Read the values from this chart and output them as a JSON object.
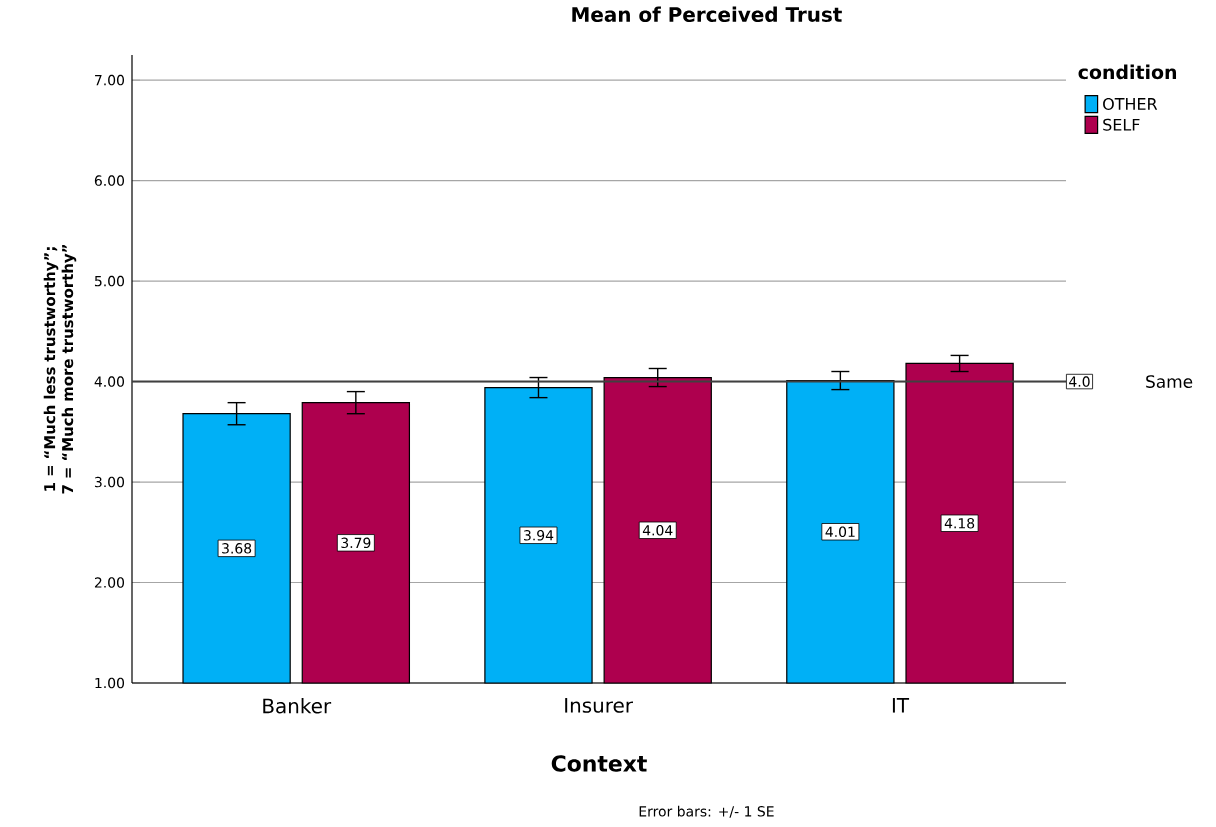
{
  "chart_data": {
    "type": "bar",
    "title": "Mean of Perceived Trust",
    "xlabel": "Context",
    "ylabel": "1 = “Much less trustworthy”; 7 = “Much more trustworthy”",
    "legend_title": "condition",
    "categories": [
      "Banker",
      "Insurer",
      "IT"
    ],
    "series": [
      {
        "name": "OTHER",
        "color": "#00b0f6",
        "values": [
          3.68,
          3.94,
          4.01
        ],
        "errors": [
          0.11,
          0.1,
          0.09
        ]
      },
      {
        "name": "SELF",
        "color": "#ae004e",
        "values": [
          3.79,
          4.04,
          4.18
        ],
        "errors": [
          0.11,
          0.09,
          0.08
        ]
      }
    ],
    "ylim": [
      1,
      7.25
    ],
    "yticks": [
      {
        "value": 1,
        "label": "1.00"
      },
      {
        "value": 2,
        "label": "2.00"
      },
      {
        "value": 3,
        "label": "3.00"
      },
      {
        "value": 4,
        "label": "4.00"
      },
      {
        "value": 5,
        "label": "5.00"
      },
      {
        "value": 6,
        "label": "6.00"
      },
      {
        "value": 7,
        "label": "7.00"
      }
    ],
    "ref_lines": [
      {
        "axis": "y",
        "value": 4,
        "label": "4.0",
        "color": "#404040"
      }
    ],
    "annotations": [
      "Same",
      "Error bars: +/- 1 SE"
    ],
    "data_labels": true,
    "grid": "y",
    "legend": "top right"
  }
}
